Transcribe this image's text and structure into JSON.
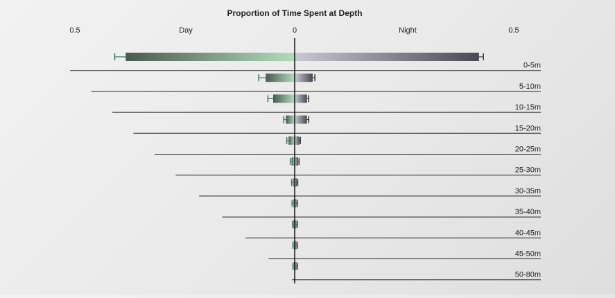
{
  "chart_data": {
    "type": "bar",
    "title": "Proportion of Time Spent at Depth",
    "left_label": "Day",
    "right_label": "Night",
    "axis_ticks": {
      "left": "0.5",
      "center": "0",
      "right": "0.5"
    },
    "xlim": [
      -0.5,
      0.5
    ],
    "categories": [
      "0-5m",
      "5-10m",
      "10-15m",
      "15-20m",
      "20-25m",
      "25-30m",
      "30-35m",
      "35-40m",
      "40-45m",
      "45-50m",
      "50-80m"
    ],
    "series": [
      {
        "name": "Day",
        "values": [
          0.385,
          0.066,
          0.049,
          0.02,
          0.014,
          0.007,
          0.004,
          0.003,
          0.003,
          0.002,
          0.002
        ],
        "errors": [
          0.025,
          0.016,
          0.012,
          0.005,
          0.004,
          0.003,
          0.003,
          0.003,
          0.002,
          0.002,
          0.002
        ]
      },
      {
        "name": "Night",
        "values": [
          0.42,
          0.041,
          0.028,
          0.028,
          0.011,
          0.008,
          0.005,
          0.004,
          0.004,
          0.004,
          0.004
        ],
        "errors": [
          0.01,
          0.005,
          0.004,
          0.004,
          0.002,
          0.002,
          0.002,
          0.002,
          0.002,
          0.002,
          0.002
        ]
      }
    ],
    "grid": false,
    "colors": {
      "day_dark": "#4a5a50",
      "day_light": "#b2dcbc",
      "day_error": "#2e7d64",
      "night_light": "#c9c9d4",
      "night_dark": "#4a4a52",
      "night_error": "#333333",
      "axis": "#111111"
    }
  }
}
